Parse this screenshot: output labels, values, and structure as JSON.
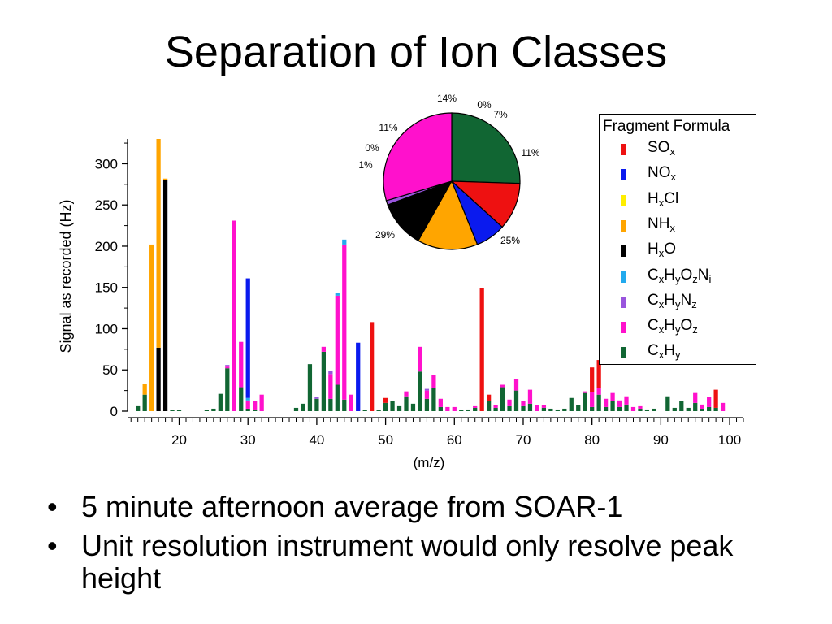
{
  "slide": {
    "title": "Separation of Ion Classes",
    "bullets": [
      "5 minute afternoon average from SOAR-1",
      "Unit resolution instrument would only resolve peak height"
    ],
    "bullet_symbol": "•"
  },
  "legend": {
    "title": "Fragment Formula",
    "items": [
      {
        "key": "SOx",
        "color": "#ee1111",
        "parts": [
          [
            "SO",
            ""
          ],
          [
            "x",
            "sub"
          ]
        ]
      },
      {
        "key": "NOx",
        "color": "#0a1aee",
        "parts": [
          [
            "NO",
            ""
          ],
          [
            "x",
            "sub"
          ]
        ]
      },
      {
        "key": "HxCl",
        "color": "#ffee00",
        "parts": [
          [
            "H",
            ""
          ],
          [
            "x",
            "sub"
          ],
          [
            "Cl",
            ""
          ]
        ]
      },
      {
        "key": "NHx",
        "color": "#ffa500",
        "parts": [
          [
            "NH",
            ""
          ],
          [
            "x",
            "sub"
          ]
        ]
      },
      {
        "key": "HxO",
        "color": "#000000",
        "parts": [
          [
            "H",
            ""
          ],
          [
            "x",
            "sub"
          ],
          [
            "O",
            ""
          ]
        ]
      },
      {
        "key": "CxHyOzNi",
        "color": "#22aaee",
        "parts": [
          [
            "C",
            ""
          ],
          [
            "x",
            "sub"
          ],
          [
            "H",
            ""
          ],
          [
            "y",
            "sub"
          ],
          [
            "O",
            ""
          ],
          [
            "z",
            "sub"
          ],
          [
            "N",
            ""
          ],
          [
            "i",
            "sub"
          ]
        ]
      },
      {
        "key": "CxHyNz",
        "color": "#9955dd",
        "parts": [
          [
            "C",
            ""
          ],
          [
            "x",
            "sub"
          ],
          [
            "H",
            ""
          ],
          [
            "y",
            "sub"
          ],
          [
            "N",
            ""
          ],
          [
            "z",
            "sub"
          ]
        ]
      },
      {
        "key": "CxHyOz",
        "color": "#ff11cc",
        "parts": [
          [
            "C",
            ""
          ],
          [
            "x",
            "sub"
          ],
          [
            "H",
            ""
          ],
          [
            "y",
            "sub"
          ],
          [
            "O",
            ""
          ],
          [
            "z",
            "sub"
          ]
        ]
      },
      {
        "key": "CxHy",
        "color": "#116633",
        "parts": [
          [
            "C",
            ""
          ],
          [
            "x",
            "sub"
          ],
          [
            "H",
            ""
          ],
          [
            "y",
            "sub"
          ]
        ]
      }
    ]
  },
  "chart_data": [
    {
      "type": "bar",
      "stacked": true,
      "xlabel": "(m/z)",
      "ylabel": "Signal as recorded (Hz)",
      "xlim": [
        12.5,
        102
      ],
      "ylim": [
        0,
        330
      ],
      "xticks": [
        20,
        30,
        40,
        50,
        60,
        70,
        80,
        90,
        100
      ],
      "yticks": [
        0,
        50,
        100,
        150,
        200,
        250,
        300
      ],
      "series_order": [
        "CxHy",
        "CxHyOz",
        "CxHyNz",
        "CxHyOzNi",
        "HxO",
        "NHx",
        "HxCl",
        "NOx",
        "SOx"
      ],
      "bars": [
        {
          "x": 14,
          "CxHy": 6
        },
        {
          "x": 15,
          "CxHy": 20,
          "NHx": 13
        },
        {
          "x": 16,
          "NHx": 202
        },
        {
          "x": 17,
          "HxO": 77,
          "NHx": 253
        },
        {
          "x": 18,
          "HxO": 280,
          "NHx": 2
        },
        {
          "x": 19,
          "CxHy": 1
        },
        {
          "x": 20,
          "CxHy": 1
        },
        {
          "x": 24,
          "CxHy": 1
        },
        {
          "x": 25,
          "CxHy": 3
        },
        {
          "x": 26,
          "CxHy": 21
        },
        {
          "x": 27,
          "CxHy": 52,
          "CxHyOz": 2,
          "CxHyNz": 2
        },
        {
          "x": 28,
          "CxHyOz": 231
        },
        {
          "x": 29,
          "CxHy": 29,
          "CxHyOz": 55
        },
        {
          "x": 30,
          "CxHy": 3,
          "CxHyOz": 10,
          "CxHyOzNi": 3,
          "NOx": 145
        },
        {
          "x": 31,
          "CxHy": 2,
          "CxHyOz": 10
        },
        {
          "x": 32,
          "CxHyOz": 20
        },
        {
          "x": 37,
          "CxHy": 4
        },
        {
          "x": 38,
          "CxHy": 9
        },
        {
          "x": 39,
          "CxHy": 57
        },
        {
          "x": 40,
          "CxHy": 15,
          "CxHyNz": 2
        },
        {
          "x": 41,
          "CxHy": 72,
          "CxHyOz": 6
        },
        {
          "x": 42,
          "CxHy": 15,
          "CxHyOz": 30,
          "CxHyNz": 4
        },
        {
          "x": 43,
          "CxHy": 32,
          "CxHyOz": 108,
          "CxHyOzNi": 3
        },
        {
          "x": 44,
          "CxHy": 14,
          "CxHyOz": 188,
          "CxHyOzNi": 6
        },
        {
          "x": 45,
          "CxHyOz": 20
        },
        {
          "x": 46,
          "NOx": 83
        },
        {
          "x": 47,
          "CxHy": 1
        },
        {
          "x": 48,
          "SOx": 108
        },
        {
          "x": 49,
          "CxHy": 1
        },
        {
          "x": 50,
          "CxHy": 10,
          "SOx": 6
        },
        {
          "x": 51,
          "CxHy": 12
        },
        {
          "x": 52,
          "CxHy": 6
        },
        {
          "x": 53,
          "CxHy": 18,
          "CxHyOz": 6
        },
        {
          "x": 54,
          "CxHy": 9
        },
        {
          "x": 55,
          "CxHy": 48,
          "CxHyOz": 30
        },
        {
          "x": 56,
          "CxHy": 15,
          "CxHyOz": 10,
          "CxHyNz": 2
        },
        {
          "x": 57,
          "CxHy": 28,
          "CxHyOz": 16
        },
        {
          "x": 58,
          "CxHy": 5,
          "CxHyOz": 10
        },
        {
          "x": 59,
          "CxHyOz": 5
        },
        {
          "x": 60,
          "CxHyOz": 5
        },
        {
          "x": 61,
          "CxHy": 1
        },
        {
          "x": 62,
          "CxHy": 2
        },
        {
          "x": 63,
          "CxHy": 4,
          "CxHyOz": 2
        },
        {
          "x": 64,
          "SOx": 149
        },
        {
          "x": 65,
          "CxHy": 12,
          "SOx": 8
        },
        {
          "x": 66,
          "CxHy": 4,
          "CxHyOz": 3
        },
        {
          "x": 67,
          "CxHy": 29,
          "CxHyOz": 3
        },
        {
          "x": 68,
          "CxHy": 6,
          "CxHyOz": 8
        },
        {
          "x": 69,
          "CxHy": 25,
          "CxHyOz": 14
        },
        {
          "x": 70,
          "CxHy": 6,
          "CxHyOz": 6
        },
        {
          "x": 71,
          "CxHy": 9,
          "CxHyOz": 17
        },
        {
          "x": 72,
          "CxHyOz": 7
        },
        {
          "x": 73,
          "CxHy": 4,
          "CxHyOz": 3
        },
        {
          "x": 74,
          "CxHy": 3
        },
        {
          "x": 75,
          "CxHy": 2
        },
        {
          "x": 76,
          "CxHy": 3
        },
        {
          "x": 77,
          "CxHy": 16
        },
        {
          "x": 78,
          "CxHy": 7
        },
        {
          "x": 79,
          "CxHy": 22,
          "CxHyOz": 2
        },
        {
          "x": 80,
          "CxHy": 5,
          "CxHyOz": 18,
          "SOx": 30
        },
        {
          "x": 81,
          "CxHy": 20,
          "CxHyOz": 8,
          "SOx": 34
        },
        {
          "x": 82,
          "CxHy": 5,
          "CxHyOz": 10
        },
        {
          "x": 83,
          "CxHy": 12,
          "CxHyOz": 10
        },
        {
          "x": 84,
          "CxHy": 5,
          "CxHyOz": 8
        },
        {
          "x": 85,
          "CxHy": 8,
          "CxHyOz": 10
        },
        {
          "x": 86,
          "CxHyOz": 5
        },
        {
          "x": 87,
          "CxHy": 3,
          "CxHyOz": 3
        },
        {
          "x": 88,
          "CxHy": 2
        },
        {
          "x": 89,
          "CxHy": 3
        },
        {
          "x": 91,
          "CxHy": 18
        },
        {
          "x": 92,
          "CxHy": 4
        },
        {
          "x": 93,
          "CxHy": 12
        },
        {
          "x": 94,
          "CxHy": 4
        },
        {
          "x": 95,
          "CxHy": 10,
          "CxHyOz": 12
        },
        {
          "x": 96,
          "CxHy": 3,
          "CxHyOz": 5
        },
        {
          "x": 97,
          "CxHy": 5,
          "CxHyOz": 12
        },
        {
          "x": 98,
          "CxHy": 4,
          "SOx": 22
        },
        {
          "x": 99,
          "CxHyOz": 10
        }
      ]
    },
    {
      "type": "pie",
      "start_angle_deg": 90,
      "slices": [
        {
          "key": "CxHy",
          "value": 25,
          "label": "25%"
        },
        {
          "key": "SOx",
          "value": 11,
          "label": "11%"
        },
        {
          "key": "NOx",
          "value": 7,
          "label": "7%"
        },
        {
          "key": "HxCl",
          "value": 0,
          "label": "0%"
        },
        {
          "key": "NHx",
          "value": 14,
          "label": "14%"
        },
        {
          "key": "HxO",
          "value": 11,
          "label": "11%"
        },
        {
          "key": "CxHyOzNi",
          "value": 0,
          "label": "0%"
        },
        {
          "key": "CxHyNz",
          "value": 1,
          "label": "1%"
        },
        {
          "key": "CxHyOz",
          "value": 29,
          "label": "29%"
        }
      ]
    }
  ]
}
